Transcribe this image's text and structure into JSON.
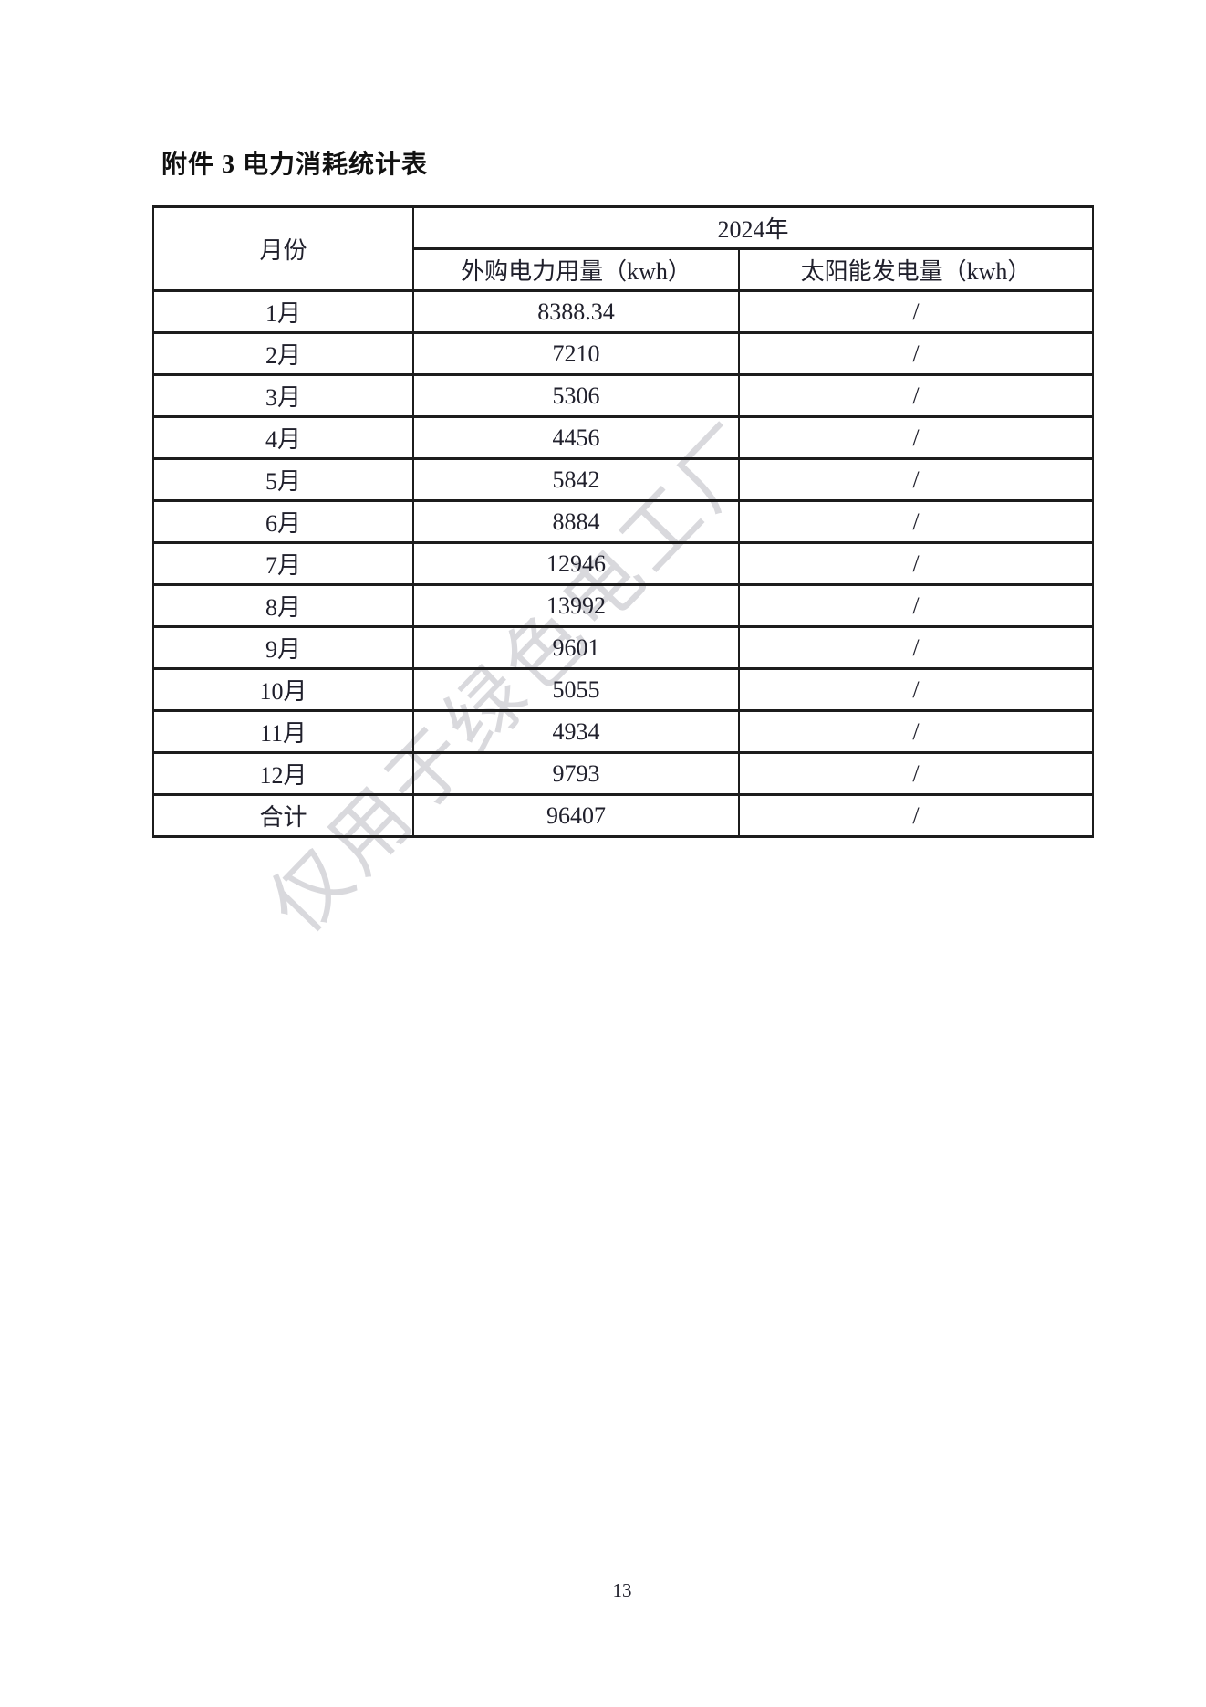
{
  "page": {
    "title": "附件 3 电力消耗统计表",
    "page_number": "13",
    "watermark_text": "仅用于绿色电工厂",
    "watermark_color": "#d9d9dd",
    "background_color": "#ffffff",
    "border_color": "#1c1c1c"
  },
  "table": {
    "header": {
      "month_label": "月份",
      "year_label": "2024年",
      "purchased_label": "外购电力用量（kwh）",
      "solar_label": "太阳能发电量（kwh）"
    },
    "rows": [
      {
        "month": "1月",
        "purchased": "8388.34",
        "solar": "/"
      },
      {
        "month": "2月",
        "purchased": "7210",
        "solar": "/"
      },
      {
        "month": "3月",
        "purchased": "5306",
        "solar": "/"
      },
      {
        "month": "4月",
        "purchased": "4456",
        "solar": "/"
      },
      {
        "month": "5月",
        "purchased": "5842",
        "solar": "/"
      },
      {
        "month": "6月",
        "purchased": "8884",
        "solar": "/"
      },
      {
        "month": "7月",
        "purchased": "12946",
        "solar": "/"
      },
      {
        "month": "8月",
        "purchased": "13992",
        "solar": "/"
      },
      {
        "month": "9月",
        "purchased": "9601",
        "solar": "/"
      },
      {
        "month": "10月",
        "purchased": "5055",
        "solar": "/"
      },
      {
        "month": "11月",
        "purchased": "4934",
        "solar": "/"
      },
      {
        "month": "12月",
        "purchased": "9793",
        "solar": "/"
      },
      {
        "month": "合计",
        "purchased": "96407",
        "solar": "/"
      }
    ]
  }
}
